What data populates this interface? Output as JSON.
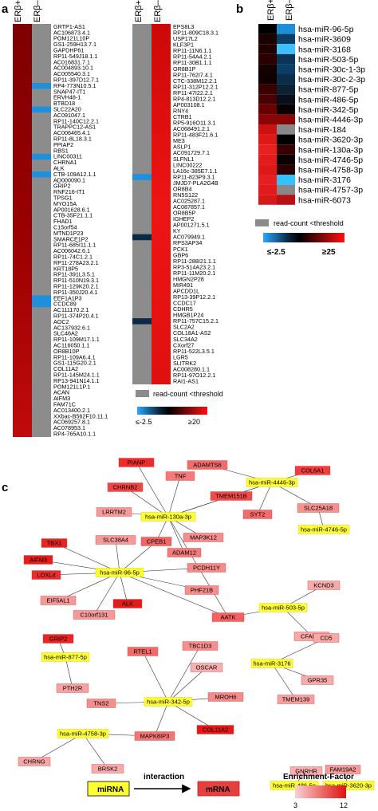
{
  "panels": {
    "a": "a",
    "b": "b",
    "c": "c"
  },
  "heatmap_a": {
    "col_labels": [
      "ERβ+",
      "ERβ–"
    ],
    "left_genes": [
      "GRTP1-AS1",
      "AC106873.4.1",
      "POM121L10P",
      "GS1-259H13.7.1",
      "GAPDHP61",
      "RP11-549J18.1.1",
      "AC016831.7.1",
      "AC004893.10.1",
      "AC005540.3.1",
      "RP11-397D12.7.1",
      "RP4-773N10.5.1",
      "SNAP47-IT1",
      "ERVH48-1",
      "BTBD18",
      "SLC22A20",
      "AC091047.1",
      "RP11-140C12.2.1",
      "TRAPPC12-AS1",
      "AC006465.4.1",
      "RP11-8L18.3.1",
      "PPIAP2",
      "RBS1",
      "LINC00311",
      "CHRNA1",
      "ALK",
      "CTB-109A12.1.1",
      "AD000090.1",
      "GRIP2",
      "RNF216-IT1",
      "TPSG1",
      "MYO15A",
      "AP001628.6.1",
      "CTB-35F21.1.1",
      "FHAD1",
      "C15orf54",
      "MTND1P23",
      "SMARCE1P2",
      "RP11-685I11.1.1",
      "AC006042.6.1",
      "RP11-74C1.2.1",
      "RP11-278A23.2.1",
      "KRT18P5",
      "RP11-391L3.5.1",
      "RP11-510N19.3.1",
      "RP11-129K20.2.1",
      "RP11-350J20.4.1",
      "EEF1A1P3",
      "CCDC89",
      "AC111170.2.1",
      "RP11-374P20.4.1",
      "AOC2",
      "AC137932.6.1",
      "SLC46A2",
      "RP11-109M17.1.1",
      "AC116050.1.1",
      "OR8B10P",
      "RP11-109A6.4.1",
      "GS1-115G20.2.1",
      "COL11A2",
      "RP11-145M24.1.1",
      "RP13-941N14.1.1",
      "POM121L1P.1",
      "ACAN",
      "AIFM3",
      "FAM71C",
      "AC013400.2.1",
      "XXbac-B562F10.11.1",
      "AC069257.8.1",
      "AC078953.1",
      "RP4-765A10.1.1"
    ],
    "left_erbeta_minus_blue": [
      10,
      14,
      22,
      25,
      46,
      47
    ],
    "right_genes": [
      "EPS8L3",
      "RP11-809C18.3.1",
      "USP17L2",
      "KLF3P1",
      "RP11-11N6.1.1",
      "RP11-54A4.2.1",
      "RP11-30B1.1.1",
      "OR8B1P",
      "RP11-762I7.4.1",
      "CTC-338M12.2.1",
      "RP11-312P12.2.1",
      "RP11-47I22.2.1",
      "RP4-813D12.2.1",
      "AP003108.1",
      "RNY4",
      "CTRB1",
      "RP5-916O11.3.1",
      "AC068491.2.1",
      "RP11-483F21.6.1",
      "ME3",
      "ASLP1",
      "AC091729.7.1",
      "SLFNL1",
      "LINC00222",
      "LA16c-385E7.1.1",
      "RP11-823P9.3.1",
      "JMJD7-PLA2G4B",
      "OR8B4",
      "RN5S122",
      "AC025287.1",
      "AC087857.1",
      "OR8B5P",
      "IGHEP2",
      "AP001271.5.1",
      "KY",
      "AC079949.1",
      "RPS3AP34",
      "PCK1",
      "GBP6",
      "RP11-288I21.1.1",
      "RP3-514A23.2.1",
      "RP11-11M20.2.1",
      "HMGN2P28",
      "MIR491",
      "APCDD1L",
      "RP13-39P12.2.1",
      "CCDC17",
      "CDHR5",
      "HMGB1P24",
      "RP11-757C15.2.1",
      "SLC2A2",
      "COL18A1-AS2",
      "SLC34A2",
      "CXorf27",
      "RP11-522L3.5.1",
      "LGR5",
      "SLITRK2",
      "AC008280.1.1",
      "RP11-97O12.2.1",
      "RAI1-AS1"
    ],
    "right_erbeta_plus_blue": [
      25,
      35,
      49
    ],
    "legend_gray": "read-count <threshold",
    "scale_min": "≤-2.5",
    "scale_max": "≥20"
  },
  "heatmap_b": {
    "col_labels": [
      "ERβ+",
      "ERβ–"
    ],
    "mirnas": [
      "hsa-miR-96-5p",
      "hsa-miR-3609",
      "hsa-miR-3168",
      "hsa-miR-503-5p",
      "hsa-miR-30c-1-3p",
      "hsa-miR-30c-2-3p",
      "hsa-miR-877-5p",
      "hsa-miR-486-5p",
      "hsa-miR-342-5p",
      "hsa-miR-4446-3p",
      "hsa-miR-184",
      "hsa-miR-3620-3p",
      "hsa-miR-130a-3p",
      "hsa-miR-4746-5p",
      "hsa-miR-4758-3p",
      "hsa-miR-3176",
      "hsa-miR-4757-3p",
      "hsa-miR-6073"
    ],
    "plus_colors": [
      "#000000",
      "#1a0000",
      "#220000",
      "#2a0000",
      "#150000",
      "#100000",
      "#3a0000",
      "#4a0000",
      "#6a0000",
      "#8a0505",
      "#cc1111",
      "#e01818",
      "#e82020",
      "#e21c1c",
      "#dd1818",
      "#e62020",
      "#e21a1a",
      "#d81818"
    ],
    "minus_colors": [
      "#1c8fd8",
      "#0b3f66",
      "#3ec0ff",
      "#0a3558",
      "#0b3e66",
      "#0a2e48",
      "#0a2233",
      "#080f1a",
      "#0b0000",
      "#8a0505",
      "#888888",
      "#000000",
      "#3a0000",
      "#0d0000",
      "#2a0000",
      "#35c0ff",
      "#888888",
      "#b81010"
    ],
    "legend_gray": "read-count <threshold",
    "scale_min": "≤-2.5",
    "scale_max": "≥25"
  },
  "network": {
    "mirnas": [
      "hsa-miR-4446-3p",
      "hsa-miR-130a-3p",
      "hsa-miR-4746-5p",
      "hsa-miR-96-5p",
      "hsa-miR-503-5p",
      "hsa-miR-877-5p",
      "hsa-miR-342-5p",
      "hsa-miR-3176",
      "hsa-miR-4758-3p",
      "hsa-miR-486-5p",
      "hsa-miR-3620-3p"
    ],
    "mrnas": [
      "PIANP",
      "ADAMTS6",
      "COL6A1",
      "CHRNB2",
      "TNF",
      "TMEM151B",
      "LRRTM2",
      "SYT2",
      "SLC25A18",
      "MAP3K12",
      "TBX1",
      "SLC38A4",
      "CPEB1",
      "ADAM12",
      "AIFM3",
      "PCDH11Y",
      "LOXL4",
      "PHF21B",
      "EIF5AL1",
      "ALK",
      "C10orf131",
      "AATK",
      "KCND3",
      "CFAP45",
      "GRIP2",
      "RTEL1",
      "TBC1D3",
      "OSCAR",
      "CD5",
      "PTH2R",
      "TNS2",
      "MROH6",
      "GPR35",
      "TMEM139",
      "COL11A2",
      "MAPK8IP3",
      "CHRNG",
      "BRSK2",
      "GNRHR",
      "FAM19A2"
    ],
    "mrna_colors": {
      "PIANP": "#ee2b2b",
      "ADAMTS6": "#f26a6a",
      "COL6A1": "#ef3e3e",
      "CHRNB2": "#ef4545",
      "TNF": "#f47a7a",
      "TMEM151B": "#f04a4a",
      "LRRTM2": "#f49a9a",
      "SYT2": "#f36a6a",
      "SLC25A18": "#f59292",
      "MAP3K12": "#f58d8d",
      "TBX1": "#e52424",
      "SLC38A4": "#f59a9a",
      "CPEB1": "#f26565",
      "ADAM12": "#f47a7a",
      "AIFM3": "#e71c1c",
      "PCDH11Y": "#f58a8a",
      "LOXL4": "#ea2c2c",
      "PHF21B": "#f58e8e",
      "EIF5AL1": "#f59a9a",
      "ALK": "#e41b1b",
      "C10orf131": "#f59a9a",
      "AATK": "#f26262",
      "KCND3": "#f7aaaa",
      "CFAP45": "#f7a8a8",
      "GRIP2": "#e92424",
      "RTEL1": "#f26a6a",
      "TBC1D3": "#f58e8e",
      "OSCAR": "#f7b0b0",
      "CD5": "#f7a8a8",
      "PTH2R": "#f7a2a2",
      "TNS2": "#f58e8e",
      "MROH6": "#f58a8a",
      "GPR35": "#f7aaaa",
      "TMEM139": "#f6a0a0",
      "COL11A2": "#e71616",
      "MAPK8IP3": "#f57575",
      "CHRNG": "#f7a5a5",
      "BRSK2": "#f7aaaa",
      "GNRHR": "#f7b0b0",
      "FAM19A2": "#f59a9a"
    },
    "legend_mirna": "miRNA",
    "legend_interaction": "interaction",
    "legend_mrna": "mRNA",
    "legend_enrichment": "Enrichment-Factor",
    "enrichment_min": "3",
    "enrichment_max": "12"
  }
}
